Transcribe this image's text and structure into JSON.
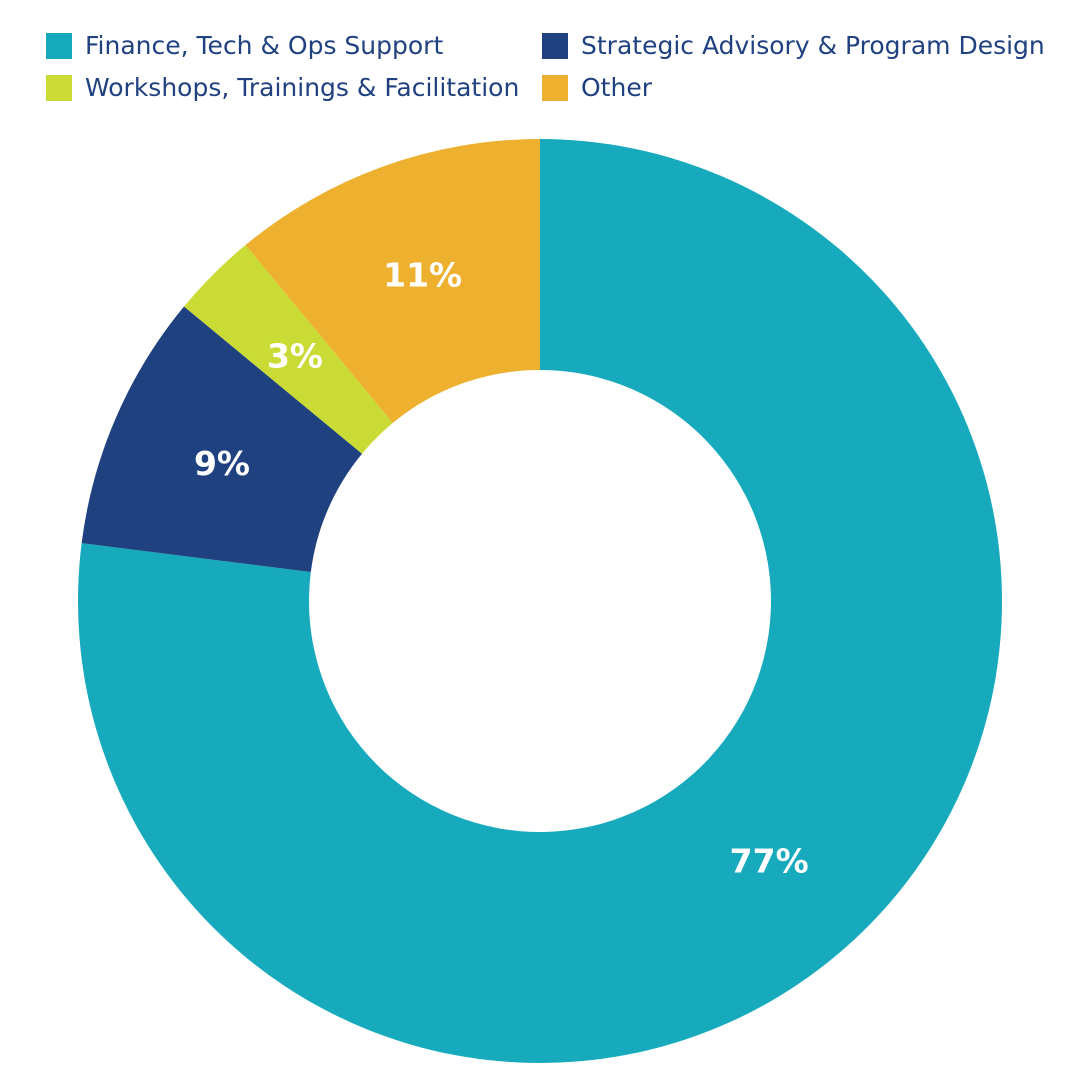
{
  "chart_data": {
    "type": "pie",
    "title": "",
    "donut": true,
    "legend_position": "top",
    "slices": [
      {
        "name": "Finance, Tech & Ops Support",
        "value": 77,
        "label": "77%",
        "color": "#17aabd"
      },
      {
        "name": "Strategic Advisory & Program Design",
        "value": 9,
        "label": "9%",
        "color": "#1f4180"
      },
      {
        "name": "Workshops, Trainings & Facilitation",
        "value": 3,
        "label": "3%",
        "color": "#cbdb35"
      },
      {
        "name": "Other",
        "value": 11,
        "label": "11%",
        "color": "#eeb02f"
      }
    ],
    "legend": [
      {
        "name": "Finance, Tech & Ops Support",
        "color": "#17aabd"
      },
      {
        "name": "Strategic Advisory & Program Design",
        "color": "#1f4180"
      },
      {
        "name": "Workshops, Trainings & Facilitation",
        "color": "#cbdb35"
      },
      {
        "name": "Other",
        "color": "#eeb02f"
      }
    ]
  }
}
